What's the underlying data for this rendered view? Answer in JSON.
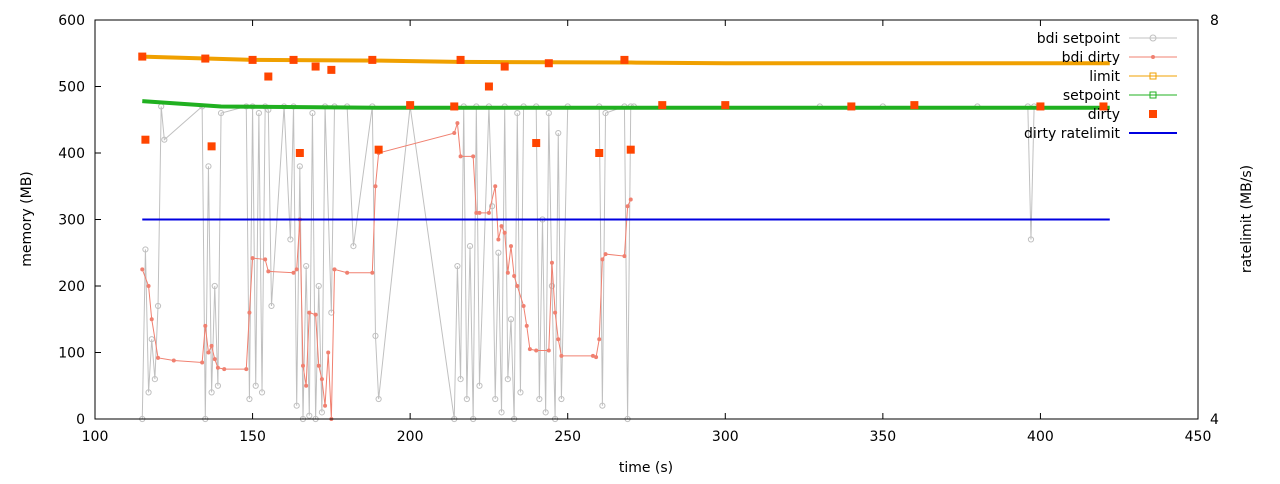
{
  "chart_data": {
    "type": "line",
    "title": "",
    "xlabel": "time (s)",
    "ylabel": "memory (MB)",
    "y2label": "ratelimit (MB/s)",
    "xlim": [
      100,
      450
    ],
    "ylim": [
      0,
      600
    ],
    "y2lim": [
      4,
      8
    ],
    "x_ticks": [
      100,
      150,
      200,
      250,
      300,
      350,
      400,
      450
    ],
    "x_tick_labels": [
      "100",
      "150",
      "200",
      "250",
      "300",
      "350",
      "400",
      "450"
    ],
    "y_ticks": [
      0,
      100,
      200,
      300,
      400,
      500,
      600
    ],
    "y_tick_labels": [
      "0",
      "100",
      "200",
      "300",
      "400",
      "500",
      "600"
    ],
    "y2_ticks": [
      4,
      8
    ],
    "y2_tick_labels": [
      "4",
      "8"
    ],
    "grid": false,
    "legend_position": "top-right",
    "legend": [
      {
        "name": "bdi setpoint",
        "color": "#c0c0c0",
        "marker": "circle-open",
        "line": true
      },
      {
        "name": "bdi dirty",
        "color": "#f08070",
        "marker": "dot",
        "line": true
      },
      {
        "name": "limit",
        "color": "#f0a000",
        "marker": "square-open",
        "line": true
      },
      {
        "name": "setpoint",
        "color": "#20b020",
        "marker": "square-open",
        "line": true
      },
      {
        "name": "dirty",
        "color": "#ff4500",
        "marker": "square-filled",
        "line": false
      },
      {
        "name": "dirty ratelimit",
        "color": "#0000e0",
        "marker": "none",
        "line": true
      }
    ],
    "series": [
      {
        "name": "limit",
        "color": "#f0a000",
        "x": [
          115,
          150,
          190,
          215,
          270,
          300,
          350,
          422
        ],
        "y": [
          545,
          540,
          539,
          537,
          536,
          535,
          535,
          535
        ]
      },
      {
        "name": "setpoint",
        "color": "#20b020",
        "x": [
          115,
          140,
          190,
          215,
          270,
          422
        ],
        "y": [
          478,
          470,
          468,
          468,
          468,
          468
        ]
      },
      {
        "name": "dirty",
        "color": "#ff4500",
        "x": [
          115,
          116,
          135,
          137,
          150,
          155,
          163,
          165,
          170,
          175,
          188,
          190,
          200,
          214,
          216,
          225,
          230,
          240,
          244,
          260,
          268,
          270,
          280,
          300,
          340,
          360,
          400,
          420
        ],
        "y": [
          545,
          420,
          542,
          410,
          540,
          515,
          540,
          400,
          530,
          525,
          540,
          405,
          472,
          470,
          540,
          500,
          530,
          415,
          535,
          400,
          540,
          405,
          472,
          472,
          470,
          472,
          470,
          470
        ]
      },
      {
        "name": "bdi dirty",
        "color": "#f08070",
        "x": [
          115,
          117,
          118,
          120,
          125,
          134,
          135,
          136,
          137,
          138,
          139,
          141,
          148,
          149,
          150,
          154,
          155,
          163,
          164,
          165,
          166,
          167,
          168,
          170,
          171,
          172,
          173,
          174,
          175,
          176,
          180,
          188,
          189,
          190,
          214,
          215,
          216,
          220,
          221,
          222,
          225,
          227,
          228,
          229,
          230,
          231,
          232,
          233,
          234,
          236,
          237,
          238,
          240,
          244,
          245,
          246,
          247,
          248,
          258,
          259,
          260,
          261,
          262,
          268,
          269,
          270
        ],
        "y": [
          225,
          200,
          150,
          92,
          88,
          85,
          140,
          100,
          110,
          90,
          77,
          75,
          75,
          160,
          242,
          240,
          222,
          220,
          225,
          300,
          80,
          50,
          160,
          157,
          80,
          60,
          20,
          100,
          0,
          225,
          220,
          220,
          350,
          400,
          430,
          445,
          395,
          395,
          310,
          310,
          310,
          350,
          270,
          290,
          280,
          220,
          260,
          215,
          200,
          170,
          140,
          105,
          103,
          103,
          235,
          160,
          120,
          95,
          95,
          93,
          120,
          240,
          248,
          245,
          320,
          330
        ]
      },
      {
        "name": "bdi setpoint",
        "color": "#c0c0c0",
        "x": [
          115,
          116,
          117,
          118,
          119,
          120,
          121,
          122,
          134,
          135,
          136,
          137,
          138,
          139,
          140,
          148,
          149,
          150,
          151,
          152,
          153,
          154,
          155,
          156,
          160,
          162,
          163,
          164,
          165,
          166,
          167,
          168,
          169,
          170,
          171,
          172,
          173,
          175,
          176,
          180,
          182,
          188,
          189,
          190,
          200,
          214,
          215,
          216,
          217,
          218,
          219,
          220,
          221,
          222,
          225,
          226,
          227,
          228,
          229,
          230,
          231,
          232,
          233,
          234,
          235,
          236,
          240,
          241,
          242,
          243,
          244,
          245,
          246,
          247,
          248,
          250,
          260,
          261,
          262,
          268,
          269,
          270,
          271,
          300,
          330,
          350,
          380,
          396,
          397,
          398,
          420
        ],
        "y": [
          0,
          255,
          40,
          120,
          60,
          170,
          470,
          420,
          470,
          0,
          380,
          40,
          200,
          50,
          460,
          470,
          30,
          470,
          50,
          460,
          40,
          470,
          465,
          170,
          470,
          270,
          470,
          20,
          380,
          0,
          230,
          5,
          460,
          0,
          200,
          10,
          470,
          160,
          470,
          470,
          260,
          470,
          125,
          30,
          470,
          0,
          230,
          60,
          470,
          30,
          260,
          0,
          470,
          50,
          470,
          320,
          30,
          250,
          10,
          470,
          60,
          150,
          0,
          460,
          40,
          470,
          470,
          30,
          300,
          10,
          460,
          200,
          0,
          430,
          30,
          470,
          470,
          20,
          460,
          470,
          0,
          470,
          470,
          470,
          470,
          470,
          470,
          470,
          270,
          470,
          470
        ]
      },
      {
        "name": "dirty ratelimit",
        "color": "#0000e0",
        "axis": "y2",
        "x": [
          115,
          422
        ],
        "y": [
          6.0,
          6.0
        ]
      }
    ]
  }
}
